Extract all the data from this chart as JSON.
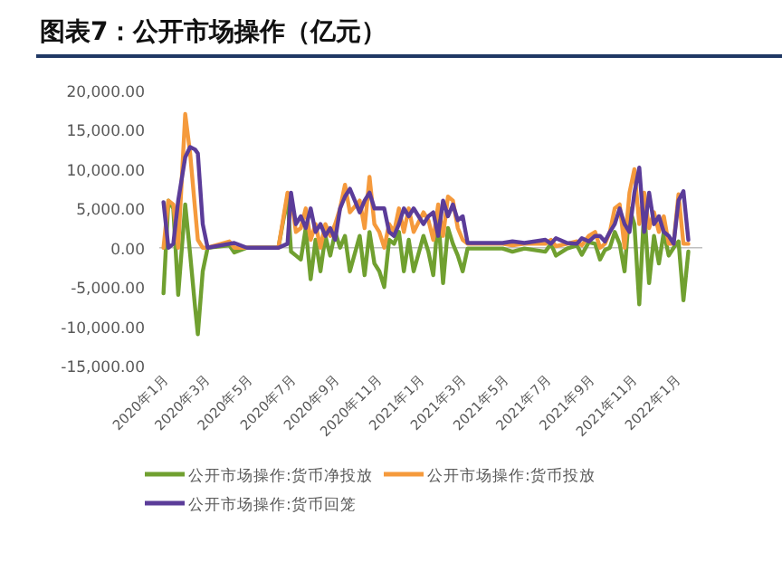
{
  "chart_data": {
    "type": "line",
    "title": "图表7：公开市场操作（亿元）",
    "x": [
      "2020-01-03",
      "2020-01-10",
      "2020-01-17",
      "2020-01-24",
      "2020-02-03",
      "2020-02-10",
      "2020-02-17",
      "2020-02-21",
      "2020-02-28",
      "2020-03-06",
      "2020-04-06",
      "2020-04-13",
      "2020-05-01",
      "2020-06-01",
      "2020-06-15",
      "2020-06-28",
      "2020-07-03",
      "2020-07-10",
      "2020-07-17",
      "2020-07-24",
      "2020-07-31",
      "2020-08-07",
      "2020-08-14",
      "2020-08-21",
      "2020-08-28",
      "2020-09-04",
      "2020-09-11",
      "2020-09-18",
      "2020-09-25",
      "2020-10-09",
      "2020-10-16",
      "2020-10-23",
      "2020-10-30",
      "2020-11-06",
      "2020-11-13",
      "2020-11-20",
      "2020-11-27",
      "2020-12-04",
      "2020-12-11",
      "2020-12-18",
      "2020-12-25",
      "2021-01-08",
      "2021-01-15",
      "2021-01-22",
      "2021-01-29",
      "2021-02-05",
      "2021-02-12",
      "2021-02-19",
      "2021-02-26",
      "2021-03-05",
      "2021-03-12",
      "2021-04-01",
      "2021-05-01",
      "2021-05-15",
      "2021-06-01",
      "2021-07-01",
      "2021-07-09",
      "2021-07-16",
      "2021-08-01",
      "2021-08-15",
      "2021-08-22",
      "2021-09-01",
      "2021-09-10",
      "2021-09-17",
      "2021-09-24",
      "2021-10-01",
      "2021-10-08",
      "2021-10-15",
      "2021-10-22",
      "2021-10-29",
      "2021-11-05",
      "2021-11-12",
      "2021-11-19",
      "2021-11-26",
      "2021-12-03",
      "2021-12-10",
      "2021-12-17",
      "2021-12-24",
      "2021-12-31",
      "2022-01-07",
      "2022-01-14",
      "2022-01-21"
    ],
    "series": [
      {
        "name": "公开市场操作:货币净投放",
        "color": "#70a030",
        "values": [
          -5800,
          6000,
          5000,
          -6000,
          5500,
          -800,
          -7500,
          -11000,
          -3000,
          0,
          300,
          -600,
          0,
          0,
          0,
          6500,
          -500,
          -1000,
          -1500,
          2500,
          -4000,
          1000,
          -3000,
          1500,
          -1000,
          2000,
          0,
          1500,
          -3000,
          1500,
          -3500,
          2000,
          -2000,
          -3000,
          -5000,
          1000,
          500,
          2000,
          -3000,
          1000,
          -3000,
          1500,
          -500,
          -3500,
          4000,
          -4500,
          2500,
          500,
          -1000,
          -3000,
          -100,
          -100,
          -100,
          -500,
          -100,
          -500,
          500,
          -1000,
          -100,
          300,
          -900,
          700,
          500,
          -1500,
          -300,
          0,
          2000,
          500,
          -3000,
          5000,
          3000,
          -7200,
          5000,
          -4500,
          1500,
          -2000,
          2000,
          -1000,
          0,
          800,
          -6700,
          -500
        ]
      },
      {
        "name": "公开市场操作:货币投放",
        "color": "#f59a3c",
        "values": [
          0,
          6000,
          5500,
          0,
          17000,
          12000,
          5000,
          1000,
          0,
          0,
          800,
          0,
          0,
          0,
          0,
          7000,
          6500,
          2000,
          2500,
          5000,
          1000,
          3000,
          0,
          3000,
          1500,
          3000,
          5000,
          8000,
          4500,
          6000,
          2500,
          9000,
          3000,
          2000,
          0,
          3000,
          2000,
          5000,
          2000,
          5000,
          2000,
          4500,
          3500,
          1000,
          5500,
          1500,
          6500,
          6000,
          2500,
          1000,
          500,
          500,
          500,
          300,
          500,
          500,
          1000,
          200,
          500,
          800,
          300,
          1500,
          2000,
          0,
          500,
          2000,
          5000,
          5500,
          0,
          7000,
          10000,
          3000,
          7000,
          2500,
          4500,
          2000,
          4000,
          500,
          500,
          6800,
          500,
          500
        ]
      },
      {
        "name": "公开市场操作:货币回笼",
        "color": "#5b3c99",
        "values": [
          5800,
          0,
          500,
          6000,
          11500,
          12800,
          12500,
          12000,
          3000,
          0,
          500,
          600,
          0,
          0,
          0,
          500,
          7000,
          3000,
          4000,
          2500,
          5000,
          2000,
          3000,
          1500,
          2500,
          1000,
          5000,
          6500,
          7500,
          4500,
          6000,
          7000,
          5000,
          5000,
          5000,
          2000,
          1500,
          3000,
          5000,
          4000,
          5000,
          3000,
          4000,
          4500,
          1500,
          6000,
          4000,
          5500,
          3500,
          4000,
          600,
          600,
          600,
          800,
          600,
          1000,
          500,
          1200,
          600,
          500,
          1200,
          800,
          1500,
          1500,
          800,
          2000,
          3000,
          5000,
          3000,
          2000,
          7000,
          10200,
          2000,
          7000,
          3000,
          4000,
          2000,
          1500,
          500,
          6000,
          7200,
          1000
        ]
      }
    ],
    "ylim": [
      -15000,
      20000
    ],
    "yticks": [
      {
        "value": -15000,
        "label": "-15,000.00"
      },
      {
        "value": -10000,
        "label": "-10,000.00"
      },
      {
        "value": -5000,
        "label": "-5,000.00"
      },
      {
        "value": 0,
        "label": "0.00"
      },
      {
        "value": 5000,
        "label": "5,000.00"
      },
      {
        "value": 10000,
        "label": "10,000.00"
      },
      {
        "value": 15000,
        "label": "15,000.00"
      },
      {
        "value": 20000,
        "label": "20,000.00"
      }
    ],
    "xlim": [
      "2019-12-28",
      "2022-02-10"
    ],
    "xticks": [
      {
        "value": "2020-01",
        "label": "2020年1月"
      },
      {
        "value": "2020-03",
        "label": "2020年3月"
      },
      {
        "value": "2020-05",
        "label": "2020年5月"
      },
      {
        "value": "2020-07",
        "label": "2020年7月"
      },
      {
        "value": "2020-09",
        "label": "2020年9月"
      },
      {
        "value": "2020-11",
        "label": "2020年11月"
      },
      {
        "value": "2021-01",
        "label": "2021年1月"
      },
      {
        "value": "2021-03",
        "label": "2021年3月"
      },
      {
        "value": "2021-05",
        "label": "2021年5月"
      },
      {
        "value": "2021-07",
        "label": "2021年7月"
      },
      {
        "value": "2021-09",
        "label": "2021年9月"
      },
      {
        "value": "2021-11",
        "label": "2021年11月"
      },
      {
        "value": "2022-01",
        "label": "2022年1月"
      }
    ],
    "legend": "bottom",
    "marker": "none",
    "line_style": "solid"
  }
}
